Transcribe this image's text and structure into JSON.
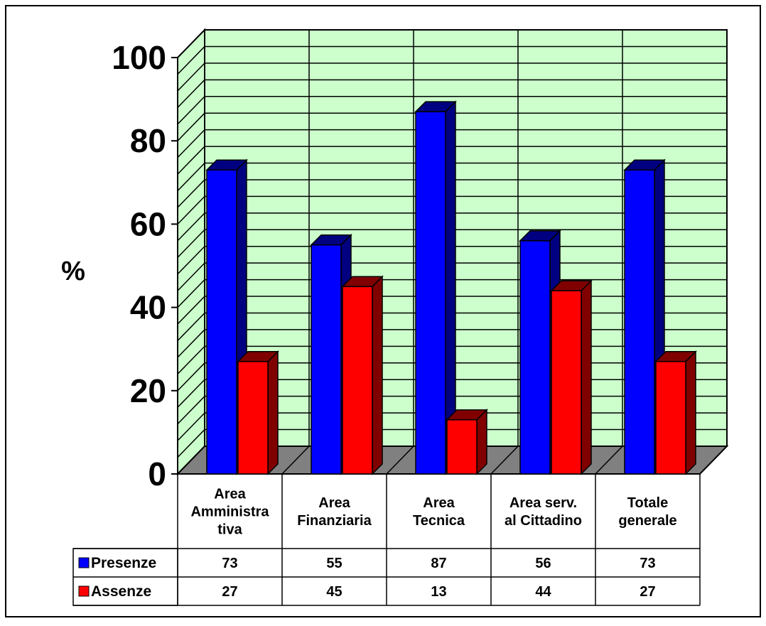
{
  "chart_data": {
    "type": "bar",
    "ylabel": "%",
    "ylim": [
      0,
      100
    ],
    "yticks": [
      "0",
      "20",
      "40",
      "60",
      "80",
      "100"
    ],
    "grid": true,
    "legend_position": "data table, left",
    "categories": [
      [
        "Area",
        "Amministra",
        "tiva"
      ],
      [
        "Area",
        "Finanziaria"
      ],
      [
        "Area",
        "Tecnica"
      ],
      [
        "Area serv.",
        "al Cittadino"
      ],
      [
        "Totale",
        "generale"
      ]
    ],
    "series": [
      {
        "name": "Presenze",
        "values": [
          73,
          55,
          87,
          56,
          73
        ],
        "color": "#0000ff",
        "side_color": "#000080"
      },
      {
        "name": "Assenze",
        "values": [
          27,
          45,
          13,
          44,
          27
        ],
        "color": "#ff0000",
        "side_color": "#800000"
      }
    ],
    "colors": {
      "wall": "#ccffcc",
      "floor": "#808080",
      "frame": "#000000"
    }
  }
}
